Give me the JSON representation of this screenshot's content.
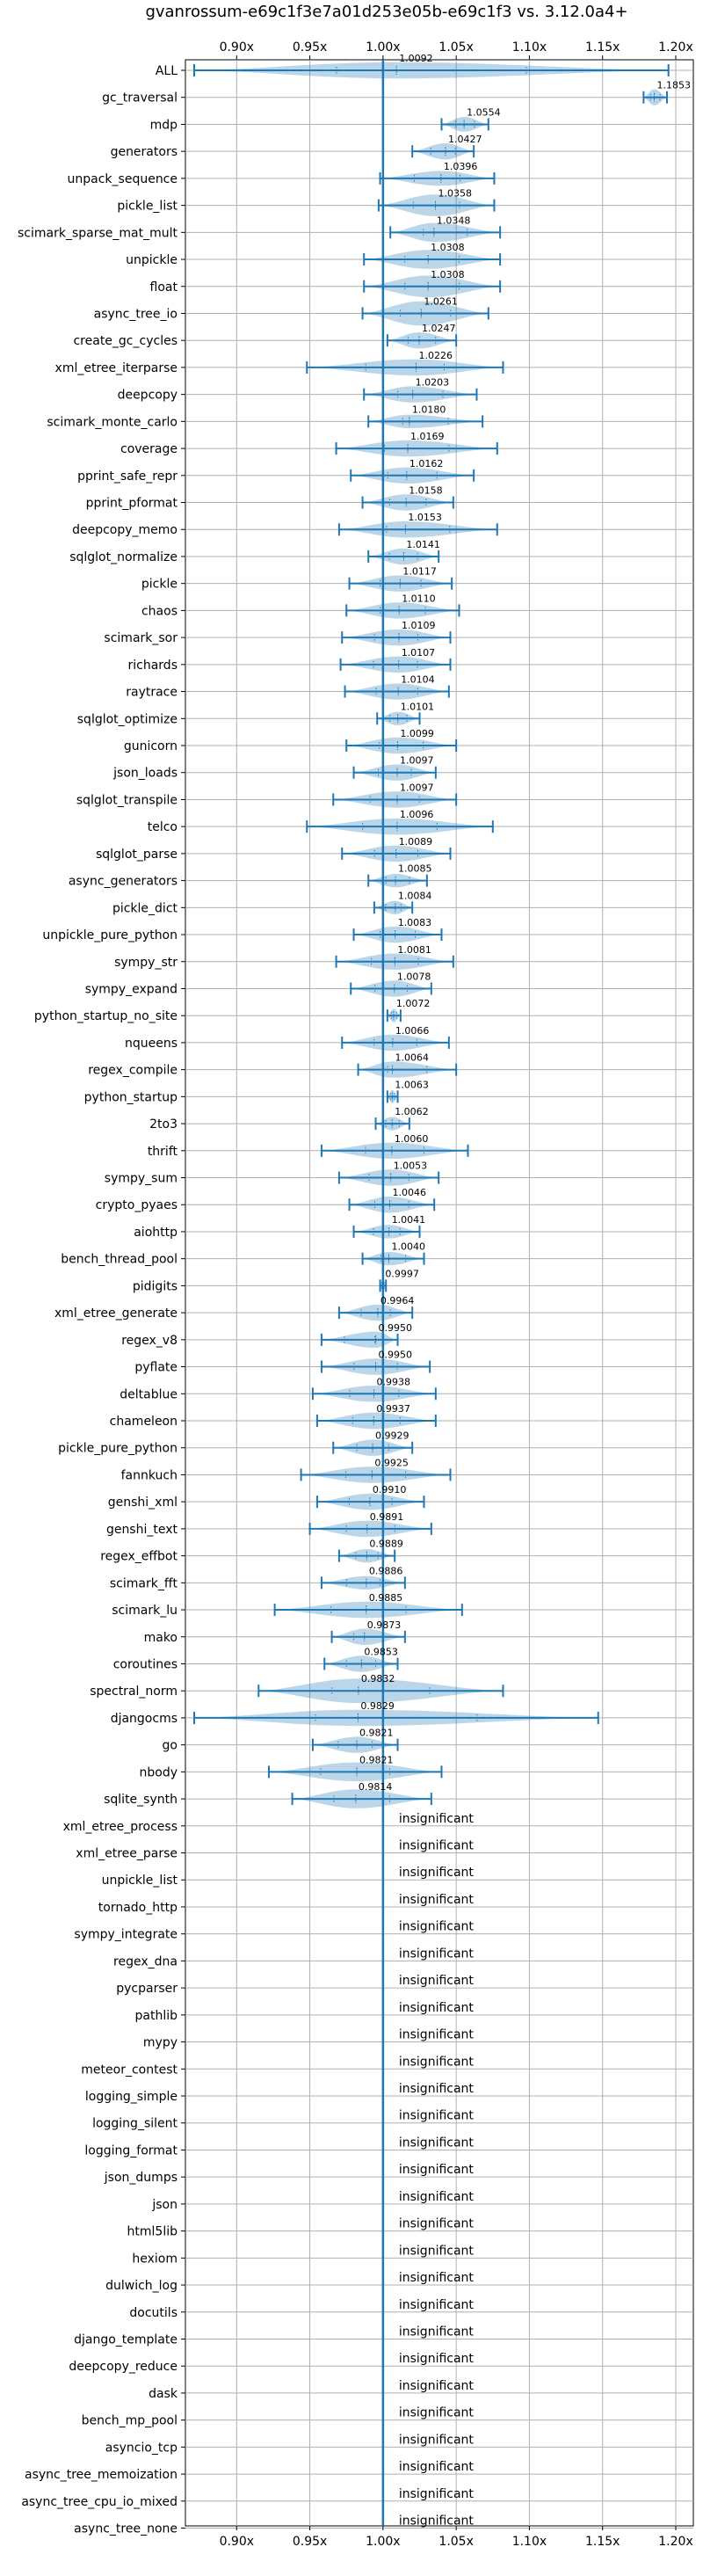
{
  "chart_data": {
    "type": "violin",
    "title": "gvanrossum-e69c1f3e7a01d253e05b-e69c1f3 vs. 3.12.0a4+",
    "xlim": [
      0.865,
      1.212
    ],
    "xticks": [
      {
        "value": 0.9,
        "label": "0.90x"
      },
      {
        "value": 0.95,
        "label": "0.95x"
      },
      {
        "value": 1.0,
        "label": "1.00x"
      },
      {
        "value": 1.05,
        "label": "1.05x"
      },
      {
        "value": 1.1,
        "label": "1.10x"
      },
      {
        "value": 1.15,
        "label": "1.15x"
      },
      {
        "value": 1.2,
        "label": "1.20x"
      }
    ],
    "reference_line": 1.0,
    "grid": true,
    "insignificant_label": "insignificant",
    "benchmarks": [
      {
        "name": "ALL",
        "value": 1.0092,
        "label": "1.0092",
        "min": 0.871,
        "max": 1.195,
        "width": 0.6
      },
      {
        "name": "gc_traversal",
        "value": 1.1853,
        "label": "1.1853",
        "min": 1.178,
        "max": 1.194,
        "width": 0.6
      },
      {
        "name": "mdp",
        "value": 1.0554,
        "label": "1.0554",
        "min": 1.04,
        "max": 1.072,
        "width": 0.55
      },
      {
        "name": "generators",
        "value": 1.0427,
        "label": "1.0427",
        "min": 1.02,
        "max": 1.062,
        "width": 0.6
      },
      {
        "name": "unpack_sequence",
        "value": 1.0396,
        "label": "1.0396",
        "min": 0.998,
        "max": 1.076,
        "width": 0.55
      },
      {
        "name": "pickle_list",
        "value": 1.0358,
        "label": "1.0358",
        "min": 0.997,
        "max": 1.076,
        "width": 0.8
      },
      {
        "name": "scimark_sparse_mat_mult",
        "value": 1.0348,
        "label": "1.0348",
        "min": 1.005,
        "max": 1.08,
        "width": 0.7
      },
      {
        "name": "unpickle",
        "value": 1.0308,
        "label": "1.0308",
        "min": 0.987,
        "max": 1.08,
        "width": 0.7
      },
      {
        "name": "float",
        "value": 1.0308,
        "label": "1.0308",
        "min": 0.987,
        "max": 1.08,
        "width": 0.8
      },
      {
        "name": "async_tree_io",
        "value": 1.0261,
        "label": "1.0261",
        "min": 0.986,
        "max": 1.072,
        "width": 0.9
      },
      {
        "name": "create_gc_cycles",
        "value": 1.0247,
        "label": "1.0247",
        "min": 1.003,
        "max": 1.05,
        "width": 0.6
      },
      {
        "name": "xml_etree_iterparse",
        "value": 1.0226,
        "label": "1.0226",
        "min": 0.948,
        "max": 1.082,
        "width": 0.6
      },
      {
        "name": "deepcopy",
        "value": 1.0203,
        "label": "1.0203",
        "min": 0.987,
        "max": 1.064,
        "width": 0.6
      },
      {
        "name": "scimark_monte_carlo",
        "value": 1.018,
        "label": "1.0180",
        "min": 0.99,
        "max": 1.068,
        "width": 0.5
      },
      {
        "name": "coverage",
        "value": 1.0169,
        "label": "1.0169",
        "min": 0.968,
        "max": 1.078,
        "width": 0.6
      },
      {
        "name": "pprint_safe_repr",
        "value": 1.0162,
        "label": "1.0162",
        "min": 0.978,
        "max": 1.062,
        "width": 0.6
      },
      {
        "name": "pprint_pformat",
        "value": 1.0158,
        "label": "1.0158",
        "min": 0.986,
        "max": 1.048,
        "width": 0.6
      },
      {
        "name": "deepcopy_memo",
        "value": 1.0153,
        "label": "1.0153",
        "min": 0.97,
        "max": 1.078,
        "width": 0.6
      },
      {
        "name": "sqlglot_normalize",
        "value": 1.0141,
        "label": "1.0141",
        "min": 0.99,
        "max": 1.038,
        "width": 0.6
      },
      {
        "name": "pickle",
        "value": 1.0117,
        "label": "1.0117",
        "min": 0.977,
        "max": 1.047,
        "width": 0.6
      },
      {
        "name": "chaos",
        "value": 1.011,
        "label": "1.0110",
        "min": 0.975,
        "max": 1.052,
        "width": 0.6
      },
      {
        "name": "scimark_sor",
        "value": 1.0109,
        "label": "1.0109",
        "min": 0.972,
        "max": 1.046,
        "width": 0.6
      },
      {
        "name": "richards",
        "value": 1.0107,
        "label": "1.0107",
        "min": 0.971,
        "max": 1.046,
        "width": 0.6
      },
      {
        "name": "raytrace",
        "value": 1.0104,
        "label": "1.0104",
        "min": 0.974,
        "max": 1.045,
        "width": 0.6
      },
      {
        "name": "sqlglot_optimize",
        "value": 1.0101,
        "label": "1.0101",
        "min": 0.996,
        "max": 1.025,
        "width": 0.5
      },
      {
        "name": "gunicorn",
        "value": 1.0099,
        "label": "1.0099",
        "min": 0.975,
        "max": 1.05,
        "width": 0.6
      },
      {
        "name": "json_loads",
        "value": 1.0097,
        "label": "1.0097",
        "min": 0.98,
        "max": 1.036,
        "width": 0.6
      },
      {
        "name": "sqlglot_transpile",
        "value": 1.0097,
        "label": "1.0097",
        "min": 0.966,
        "max": 1.05,
        "width": 0.6
      },
      {
        "name": "telco",
        "value": 1.0096,
        "label": "1.0096",
        "min": 0.948,
        "max": 1.075,
        "width": 0.6
      },
      {
        "name": "sqlglot_parse",
        "value": 1.0089,
        "label": "1.0089",
        "min": 0.972,
        "max": 1.046,
        "width": 0.6
      },
      {
        "name": "async_generators",
        "value": 1.0085,
        "label": "1.0085",
        "min": 0.99,
        "max": 1.03,
        "width": 0.5
      },
      {
        "name": "pickle_dict",
        "value": 1.0084,
        "label": "1.0084",
        "min": 0.994,
        "max": 1.02,
        "width": 0.5
      },
      {
        "name": "unpickle_pure_python",
        "value": 1.0083,
        "label": "1.0083",
        "min": 0.98,
        "max": 1.04,
        "width": 0.6
      },
      {
        "name": "sympy_str",
        "value": 1.0081,
        "label": "1.0081",
        "min": 0.968,
        "max": 1.048,
        "width": 0.6
      },
      {
        "name": "sympy_expand",
        "value": 1.0078,
        "label": "1.0078",
        "min": 0.978,
        "max": 1.033,
        "width": 0.6
      },
      {
        "name": "python_startup_no_site",
        "value": 1.0072,
        "label": "1.0072",
        "min": 1.003,
        "max": 1.012,
        "width": 0.5
      },
      {
        "name": "nqueens",
        "value": 1.0066,
        "label": "1.0066",
        "min": 0.972,
        "max": 1.045,
        "width": 0.6
      },
      {
        "name": "regex_compile",
        "value": 1.0064,
        "label": "1.0064",
        "min": 0.983,
        "max": 1.05,
        "width": 0.6
      },
      {
        "name": "python_startup",
        "value": 1.0063,
        "label": "1.0063",
        "min": 1.003,
        "max": 1.01,
        "width": 0.5
      },
      {
        "name": "2to3",
        "value": 1.0062,
        "label": "1.0062",
        "min": 0.995,
        "max": 1.018,
        "width": 0.5
      },
      {
        "name": "thrift",
        "value": 1.006,
        "label": "1.0060",
        "min": 0.958,
        "max": 1.058,
        "width": 0.6
      },
      {
        "name": "sympy_sum",
        "value": 1.0053,
        "label": "1.0053",
        "min": 0.97,
        "max": 1.038,
        "width": 0.6
      },
      {
        "name": "crypto_pyaes",
        "value": 1.0046,
        "label": "1.0046",
        "min": 0.977,
        "max": 1.035,
        "width": 0.6
      },
      {
        "name": "aiohttp",
        "value": 1.0041,
        "label": "1.0041",
        "min": 0.98,
        "max": 1.025,
        "width": 0.5
      },
      {
        "name": "bench_thread_pool",
        "value": 1.004,
        "label": "1.0040",
        "min": 0.986,
        "max": 1.028,
        "width": 0.5
      },
      {
        "name": "pidigits",
        "value": 0.9997,
        "label": "0.9997",
        "min": 0.998,
        "max": 1.002,
        "width": 0.5
      },
      {
        "name": "xml_etree_generate",
        "value": 0.9964,
        "label": "0.9964",
        "min": 0.97,
        "max": 1.02,
        "width": 0.6
      },
      {
        "name": "regex_v8",
        "value": 0.995,
        "label": "0.9950",
        "min": 0.958,
        "max": 1.01,
        "width": 0.6
      },
      {
        "name": "pyflate",
        "value": 0.995,
        "label": "0.9950",
        "min": 0.958,
        "max": 1.032,
        "width": 0.6
      },
      {
        "name": "deltablue",
        "value": 0.9938,
        "label": "0.9938",
        "min": 0.952,
        "max": 1.036,
        "width": 0.6
      },
      {
        "name": "chameleon",
        "value": 0.9937,
        "label": "0.9937",
        "min": 0.955,
        "max": 1.036,
        "width": 0.6
      },
      {
        "name": "pickle_pure_python",
        "value": 0.9929,
        "label": "0.9929",
        "min": 0.966,
        "max": 1.02,
        "width": 0.6
      },
      {
        "name": "fannkuch",
        "value": 0.9925,
        "label": "0.9925",
        "min": 0.944,
        "max": 1.046,
        "width": 0.6
      },
      {
        "name": "genshi_xml",
        "value": 0.991,
        "label": "0.9910",
        "min": 0.955,
        "max": 1.028,
        "width": 0.6
      },
      {
        "name": "genshi_text",
        "value": 0.9891,
        "label": "0.9891",
        "min": 0.95,
        "max": 1.033,
        "width": 0.6
      },
      {
        "name": "regex_effbot",
        "value": 0.9889,
        "label": "0.9889",
        "min": 0.97,
        "max": 1.008,
        "width": 0.5
      },
      {
        "name": "scimark_fft",
        "value": 0.9886,
        "label": "0.9886",
        "min": 0.958,
        "max": 1.015,
        "width": 0.5
      },
      {
        "name": "scimark_lu",
        "value": 0.9885,
        "label": "0.9885",
        "min": 0.926,
        "max": 1.054,
        "width": 0.6
      },
      {
        "name": "mako",
        "value": 0.9873,
        "label": "0.9873",
        "min": 0.965,
        "max": 1.015,
        "width": 0.6
      },
      {
        "name": "coroutines",
        "value": 0.9853,
        "label": "0.9853",
        "min": 0.96,
        "max": 1.01,
        "width": 0.6
      },
      {
        "name": "spectral_norm",
        "value": 0.9832,
        "label": "0.9832",
        "min": 0.915,
        "max": 1.082,
        "width": 0.9
      },
      {
        "name": "djangocms",
        "value": 0.9829,
        "label": "0.9829",
        "min": 0.871,
        "max": 1.147,
        "width": 0.6
      },
      {
        "name": "go",
        "value": 0.9821,
        "label": "0.9821",
        "min": 0.952,
        "max": 1.01,
        "width": 0.6
      },
      {
        "name": "nbody",
        "value": 0.9821,
        "label": "0.9821",
        "min": 0.922,
        "max": 1.04,
        "width": 0.7
      },
      {
        "name": "sqlite_synth",
        "value": 0.9814,
        "label": "0.9814",
        "min": 0.938,
        "max": 1.033,
        "width": 0.7
      },
      {
        "name": "xml_etree_process",
        "insignificant": true
      },
      {
        "name": "xml_etree_parse",
        "insignificant": true
      },
      {
        "name": "unpickle_list",
        "insignificant": true
      },
      {
        "name": "tornado_http",
        "insignificant": true
      },
      {
        "name": "sympy_integrate",
        "insignificant": true
      },
      {
        "name": "regex_dna",
        "insignificant": true
      },
      {
        "name": "pycparser",
        "insignificant": true
      },
      {
        "name": "pathlib",
        "insignificant": true
      },
      {
        "name": "mypy",
        "insignificant": true
      },
      {
        "name": "meteor_contest",
        "insignificant": true
      },
      {
        "name": "logging_simple",
        "insignificant": true
      },
      {
        "name": "logging_silent",
        "insignificant": true
      },
      {
        "name": "logging_format",
        "insignificant": true
      },
      {
        "name": "json_dumps",
        "insignificant": true
      },
      {
        "name": "json",
        "insignificant": true
      },
      {
        "name": "html5lib",
        "insignificant": true
      },
      {
        "name": "hexiom",
        "insignificant": true
      },
      {
        "name": "dulwich_log",
        "insignificant": true
      },
      {
        "name": "docutils",
        "insignificant": true
      },
      {
        "name": "django_template",
        "insignificant": true
      },
      {
        "name": "deepcopy_reduce",
        "insignificant": true
      },
      {
        "name": "dask",
        "insignificant": true
      },
      {
        "name": "bench_mp_pool",
        "insignificant": true
      },
      {
        "name": "asyncio_tcp",
        "insignificant": true
      },
      {
        "name": "async_tree_memoization",
        "insignificant": true
      },
      {
        "name": "async_tree_cpu_io_mixed",
        "insignificant": true
      },
      {
        "name": "async_tree_none",
        "insignificant": true
      }
    ]
  },
  "colors": {
    "line": "#1f77b4",
    "violin_fill": "#1f77b4",
    "grid": "#b0b0b0",
    "text": "#000000"
  }
}
